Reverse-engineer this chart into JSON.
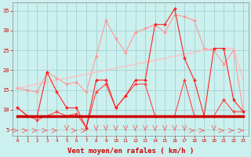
{
  "x": [
    0,
    1,
    2,
    3,
    4,
    5,
    6,
    7,
    8,
    9,
    10,
    11,
    12,
    13,
    14,
    15,
    16,
    17,
    18,
    19,
    20,
    21,
    22,
    23
  ],
  "series": {
    "rafales": [
      10.5,
      8.5,
      8.5,
      19.5,
      14.5,
      10.5,
      10.5,
      5.5,
      17.5,
      17.5,
      10.5,
      13.5,
      17.5,
      17.5,
      31.5,
      31.5,
      35.5,
      23.0,
      17.5,
      8.5,
      25.5,
      25.5,
      12.5,
      9.5
    ],
    "moy_high": [
      15.5,
      15.0,
      14.5,
      19.5,
      18.0,
      16.5,
      17.0,
      14.5,
      23.5,
      32.5,
      28.0,
      24.5,
      29.5,
      30.5,
      31.5,
      29.5,
      34.0,
      33.5,
      32.5,
      25.5,
      25.0,
      21.5,
      25.0,
      9.5
    ],
    "linear_high": [
      15.5,
      16.0,
      16.5,
      17.0,
      17.5,
      18.0,
      18.5,
      19.0,
      19.5,
      20.0,
      20.5,
      21.0,
      21.5,
      22.0,
      22.5,
      23.0,
      23.5,
      24.0,
      24.5,
      25.0,
      25.5,
      25.5,
      25.5,
      17.5
    ],
    "linear_low": [
      8.5,
      8.5,
      8.5,
      8.5,
      8.5,
      8.5,
      8.5,
      8.5,
      8.5,
      8.5,
      8.5,
      8.5,
      8.5,
      8.5,
      8.5,
      8.5,
      8.5,
      8.5,
      8.5,
      8.5,
      8.5,
      8.5,
      8.5,
      8.5
    ],
    "moy_low": [
      10.5,
      8.5,
      7.5,
      8.5,
      9.5,
      8.5,
      9.0,
      5.5,
      14.5,
      16.5,
      10.5,
      13.5,
      16.5,
      16.5,
      8.5,
      8.5,
      8.5,
      17.5,
      8.5,
      8.5,
      8.5,
      12.5,
      9.5,
      9.5
    ]
  },
  "arrow_dirs": [
    "r",
    "r",
    "r",
    "r",
    "r",
    "d",
    "r",
    "r",
    "d",
    "d",
    "d",
    "d",
    "d",
    "d",
    "d",
    "d",
    "d",
    "d",
    "r",
    "r",
    "d",
    "r",
    "r",
    "r"
  ],
  "colors": {
    "rafales": "#FF2222",
    "moy_high": "#FF9999",
    "linear_high": "#FFBBBB",
    "linear_low": "#CC0000",
    "moy_low": "#FF4444"
  },
  "background": "#CCF0EE",
  "grid_color": "#99CCCC",
  "xlabel": "Vent moyen/en rafales ( km/h )",
  "xlim": [
    -0.5,
    23.5
  ],
  "ylim": [
    3.5,
    37
  ],
  "yticks": [
    5,
    10,
    15,
    20,
    25,
    30,
    35
  ],
  "xticks": [
    0,
    1,
    2,
    3,
    4,
    5,
    6,
    7,
    8,
    9,
    10,
    11,
    12,
    13,
    14,
    15,
    16,
    17,
    18,
    19,
    20,
    21,
    22,
    23
  ]
}
